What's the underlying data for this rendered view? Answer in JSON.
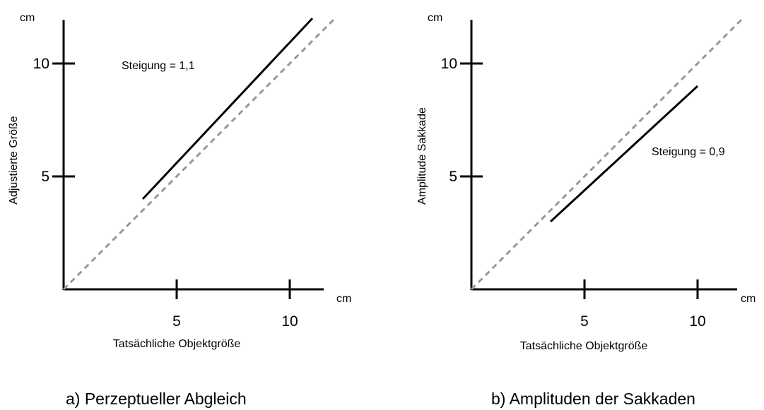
{
  "chart_data": [
    {
      "type": "line",
      "caption": "a) Perzeptueller Abgleich",
      "xlabel": "Tatsächliche Objektgröße",
      "ylabel": "Adjustierte Größe",
      "x_unit": "cm",
      "y_unit": "cm",
      "xlim": [
        0,
        12
      ],
      "ylim": [
        0,
        12
      ],
      "x_ticks": [
        5,
        10
      ],
      "y_ticks": [
        5,
        10
      ],
      "grid": false,
      "annotation": "Steigung = 1,1",
      "series": [
        {
          "style": "solid",
          "color": "#000000",
          "x": [
            3.5,
            11.0
          ],
          "y": [
            4.0,
            12.0
          ]
        },
        {
          "style": "dashed",
          "color": "#999999",
          "x": [
            0,
            12
          ],
          "y": [
            0,
            12
          ]
        }
      ]
    },
    {
      "type": "line",
      "caption": "b) Amplituden der Sakkaden",
      "xlabel": "Tatsächliche Objektgröße",
      "ylabel": "Amplitude Sakkade",
      "x_unit": "cm",
      "y_unit": "cm",
      "xlim": [
        0,
        12
      ],
      "ylim": [
        0,
        12
      ],
      "x_ticks": [
        5,
        10
      ],
      "y_ticks": [
        5,
        10
      ],
      "grid": false,
      "annotation": "Steigung = 0,9",
      "series": [
        {
          "style": "solid",
          "color": "#000000",
          "x": [
            3.5,
            10.0
          ],
          "y": [
            3.0,
            9.0
          ]
        },
        {
          "style": "dashed",
          "color": "#999999",
          "x": [
            0,
            12
          ],
          "y": [
            0,
            12
          ]
        }
      ]
    }
  ]
}
